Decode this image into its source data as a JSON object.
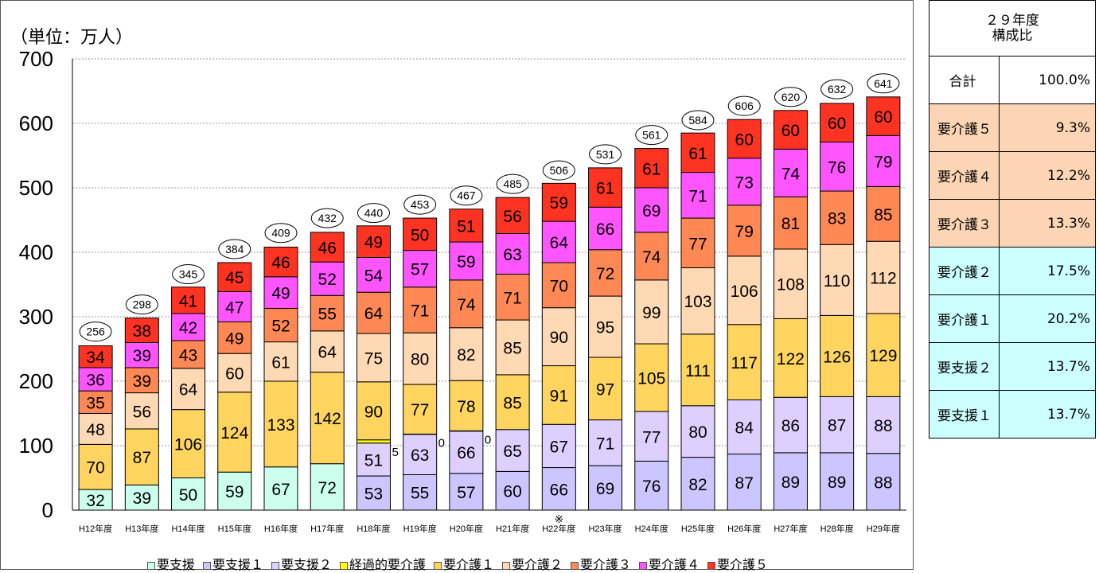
{
  "chart_data": {
    "type": "bar",
    "stacked": true,
    "unit_label": "（単位：万人）",
    "ylim": [
      0,
      700
    ],
    "y_ticks": [
      "0",
      "100",
      "200",
      "300",
      "400",
      "500",
      "600",
      "700"
    ],
    "grid": true,
    "legend_position": "bottom",
    "footnote_mark": "※",
    "footnote_category": "H22年度",
    "categories": [
      "H12年度",
      "H13年度",
      "H14年度",
      "H15年度",
      "H16年度",
      "H17年度",
      "H18年度",
      "H19年度",
      "H20年度",
      "H21年度",
      "H22年度",
      "H23年度",
      "H24年度",
      "H25年度",
      "H26年度",
      "H27年度",
      "H28年度",
      "H29年度"
    ],
    "totals": [
      256,
      298,
      345,
      384,
      409,
      432,
      440,
      453,
      467,
      485,
      506,
      531,
      561,
      584,
      606,
      620,
      632,
      641
    ],
    "series": [
      {
        "name": "要支援",
        "color": "#ccffee",
        "values": [
          32,
          39,
          50,
          59,
          67,
          72,
          null,
          null,
          null,
          null,
          null,
          null,
          null,
          null,
          null,
          null,
          null,
          null
        ]
      },
      {
        "name": "要支援１",
        "color": "#cbc6ff",
        "values": [
          null,
          null,
          null,
          null,
          null,
          null,
          53,
          55,
          57,
          60,
          66,
          69,
          76,
          82,
          87,
          89,
          89,
          88
        ]
      },
      {
        "name": "要支援２",
        "color": "#ddd0ff",
        "values": [
          null,
          null,
          null,
          null,
          null,
          null,
          51,
          63,
          66,
          65,
          67,
          71,
          77,
          80,
          84,
          86,
          87,
          88
        ]
      },
      {
        "name": "経過的要介護",
        "color": "#ffff00",
        "values": [
          null,
          null,
          null,
          null,
          null,
          null,
          5,
          0,
          0,
          null,
          null,
          null,
          null,
          null,
          null,
          null,
          null,
          null
        ]
      },
      {
        "name": "要介護１",
        "color": "#ffd560",
        "values": [
          70,
          87,
          106,
          124,
          133,
          142,
          90,
          77,
          78,
          85,
          91,
          97,
          105,
          111,
          117,
          122,
          126,
          129
        ]
      },
      {
        "name": "要介護２",
        "color": "#ffd8b4",
        "values": [
          48,
          56,
          64,
          60,
          61,
          64,
          75,
          80,
          82,
          85,
          90,
          95,
          99,
          103,
          106,
          108,
          110,
          112
        ]
      },
      {
        "name": "要介護３",
        "color": "#ff8855",
        "values": [
          35,
          39,
          43,
          49,
          52,
          55,
          64,
          71,
          74,
          71,
          70,
          72,
          74,
          77,
          79,
          81,
          83,
          85
        ]
      },
      {
        "name": "要介護４",
        "color": "#ff55ff",
        "values": [
          36,
          39,
          42,
          47,
          49,
          52,
          54,
          57,
          59,
          63,
          64,
          66,
          69,
          71,
          73,
          74,
          76,
          79
        ]
      },
      {
        "name": "要介護５",
        "color": "#ff3322",
        "values": [
          34,
          38,
          41,
          45,
          46,
          46,
          49,
          50,
          51,
          56,
          59,
          61,
          61,
          61,
          60,
          60,
          60,
          60
        ]
      }
    ]
  },
  "ratio_table": {
    "header_line1": "２９年度",
    "header_line2": "構成比",
    "rows": [
      {
        "label": "合計",
        "value": "100.0%",
        "color": "#ffffff"
      },
      {
        "label": "要介護５",
        "value": "9.3%",
        "color": "#fcd5b4"
      },
      {
        "label": "要介護４",
        "value": "12.2%",
        "color": "#fcd5b4"
      },
      {
        "label": "要介護３",
        "value": "13.3%",
        "color": "#fcd5b4"
      },
      {
        "label": "要介護２",
        "value": "17.5%",
        "color": "#ccffff"
      },
      {
        "label": "要介護１",
        "value": "20.2%",
        "color": "#ccffff"
      },
      {
        "label": "要支援２",
        "value": "13.7%",
        "color": "#ccffff"
      },
      {
        "label": "要支援１",
        "value": "13.7%",
        "color": "#ccffff"
      }
    ]
  }
}
